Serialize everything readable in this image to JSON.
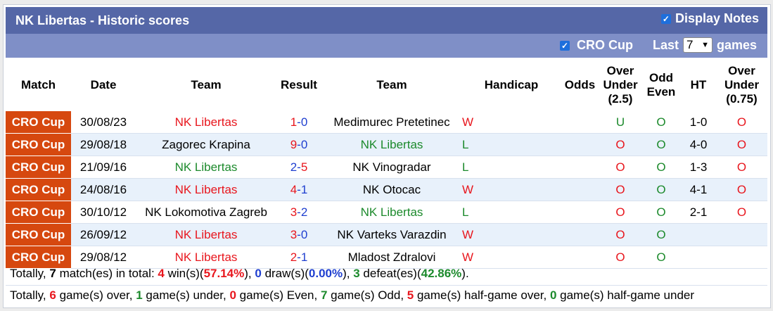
{
  "header": {
    "title": "NK Libertas - Historic scores",
    "display_notes_label": "Display Notes",
    "display_notes_checked": true
  },
  "filter": {
    "cup_label": "CRO Cup",
    "cup_checked": true,
    "last_label": "Last",
    "last_value": "7",
    "games_label": "games"
  },
  "columns": {
    "match": "Match",
    "date": "Date",
    "team_home": "Team",
    "result": "Result",
    "team_away": "Team",
    "handicap": "Handicap",
    "odds": "Odds",
    "over_under_1": "Over",
    "over_under_2": "Under",
    "over_under_3": "(2.5)",
    "odd_even_1": "Odd",
    "odd_even_2": "Even",
    "ht": "HT",
    "ou075_1": "Over",
    "ou075_2": "Under",
    "ou075_3": "(0.75)"
  },
  "rows": [
    {
      "comp": "CRO Cup",
      "date": "30/08/23",
      "home": "NK Libertas",
      "home_color": "red",
      "score_home": "1",
      "score_away": "0",
      "away": "Medimurec Pretetinec",
      "away_color": "black",
      "outcome": "W",
      "handicap": "",
      "odds": "",
      "ou": "U",
      "oe": "O",
      "ht": "1-0",
      "ou075": "O"
    },
    {
      "comp": "CRO Cup",
      "date": "29/08/18",
      "home": "Zagorec Krapina",
      "home_color": "black",
      "score_home": "9",
      "score_away": "0",
      "away": "NK Libertas",
      "away_color": "green",
      "outcome": "L",
      "handicap": "",
      "odds": "",
      "ou": "O",
      "oe": "O",
      "ht": "4-0",
      "ou075": "O"
    },
    {
      "comp": "CRO Cup",
      "date": "21/09/16",
      "home": "NK Libertas",
      "home_color": "green",
      "score_home": "2",
      "score_away": "5",
      "away": "NK Vinogradar",
      "away_color": "black",
      "outcome": "L",
      "handicap": "",
      "odds": "",
      "ou": "O",
      "oe": "O",
      "ht": "1-3",
      "ou075": "O"
    },
    {
      "comp": "CRO Cup",
      "date": "24/08/16",
      "home": "NK Libertas",
      "home_color": "red",
      "score_home": "4",
      "score_away": "1",
      "away": "NK Otocac",
      "away_color": "black",
      "outcome": "W",
      "handicap": "",
      "odds": "",
      "ou": "O",
      "oe": "O",
      "ht": "4-1",
      "ou075": "O"
    },
    {
      "comp": "CRO Cup",
      "date": "30/10/12",
      "home": "NK Lokomotiva Zagreb",
      "home_color": "black",
      "score_home": "3",
      "score_away": "2",
      "away": "NK Libertas",
      "away_color": "green",
      "outcome": "L",
      "handicap": "",
      "odds": "",
      "ou": "O",
      "oe": "O",
      "ht": "2-1",
      "ou075": "O"
    },
    {
      "comp": "CRO Cup",
      "date": "26/09/12",
      "home": "NK Libertas",
      "home_color": "red",
      "score_home": "3",
      "score_away": "0",
      "away": "NK Varteks Varazdin",
      "away_color": "black",
      "outcome": "W",
      "handicap": "",
      "odds": "",
      "ou": "O",
      "oe": "O",
      "ht": "",
      "ou075": ""
    },
    {
      "comp": "CRO Cup",
      "date": "29/08/12",
      "home": "NK Libertas",
      "home_color": "red",
      "score_home": "2",
      "score_away": "1",
      "away": "Mladost Zdralovi",
      "away_color": "black",
      "outcome": "W",
      "handicap": "",
      "odds": "",
      "ou": "O",
      "oe": "O",
      "ht": "",
      "ou075": ""
    }
  ],
  "summary1": {
    "p1": "Totally, ",
    "matches": "7",
    "p2": " match(es) in total: ",
    "wins": "4",
    "p3": " win(s)(",
    "win_pct": "57.14%",
    "p4": "), ",
    "draws": "0",
    "p5": " draw(s)(",
    "draw_pct": "0.00%",
    "p6": "), ",
    "defeats": "3",
    "p7": " defeat(es)(",
    "defeat_pct": "42.86%",
    "p8": ")."
  },
  "summary2": {
    "p1": "Totally, ",
    "over": "6",
    "p2": " game(s) over, ",
    "under": "1",
    "p3": " game(s) under, ",
    "even": "0",
    "p4": " game(s) Even, ",
    "odd": "7",
    "p5": " game(s) Odd, ",
    "half_over": "5",
    "p6": " game(s) half-game over, ",
    "half_under": "0",
    "p7": " game(s) half-game under"
  },
  "colors": {
    "title_bar": "#5567a7",
    "filter_bar": "#7f8fc7",
    "competition": "#d6480f",
    "red": "#e8161d",
    "green": "#1c8a2c",
    "blue": "#1f3fd0",
    "row_alt": "#e8f1fb"
  }
}
